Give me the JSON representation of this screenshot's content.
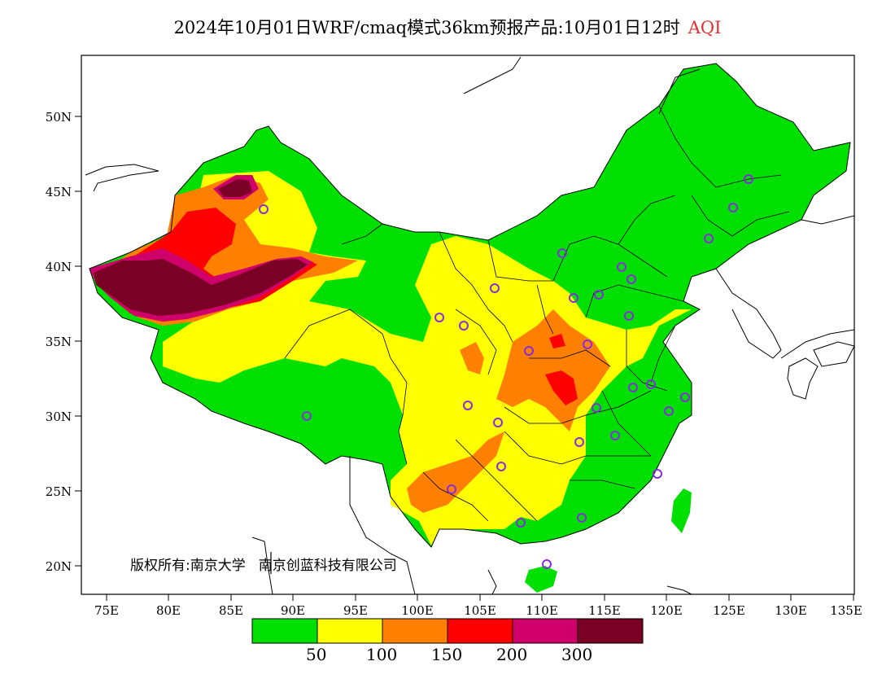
{
  "title": {
    "main": "2024年10月01日WRF/cmaq模式36km预报产品:10月01日12时",
    "quantity": "AQI"
  },
  "axes": {
    "x_ticks": [
      "75E",
      "80E",
      "85E",
      "90E",
      "95E",
      "100E",
      "105E",
      "110E",
      "115E",
      "120E",
      "125E",
      "130E",
      "135E"
    ],
    "y_ticks": [
      "50N",
      "45N",
      "40N",
      "35N",
      "30N",
      "25N",
      "20N"
    ]
  },
  "copyright": {
    "text1": "版权所有:南京大学",
    "text2": "南京创蓝科技有限公司"
  },
  "legend": {
    "colors": [
      "#00e000",
      "#ffff00",
      "#ff8000",
      "#ff0000",
      "#d0006a",
      "#7a0026"
    ],
    "labels": [
      "50",
      "100",
      "150",
      "200",
      "300"
    ]
  },
  "colors": {
    "good": "#00e000",
    "moderate": "#ffff00",
    "usg": "#ff8000",
    "unhealthy": "#ff0000",
    "very_unhealthy": "#d0006a",
    "hazardous": "#7a0026",
    "station_marker": "#8a2be2"
  },
  "stations_count": 31
}
